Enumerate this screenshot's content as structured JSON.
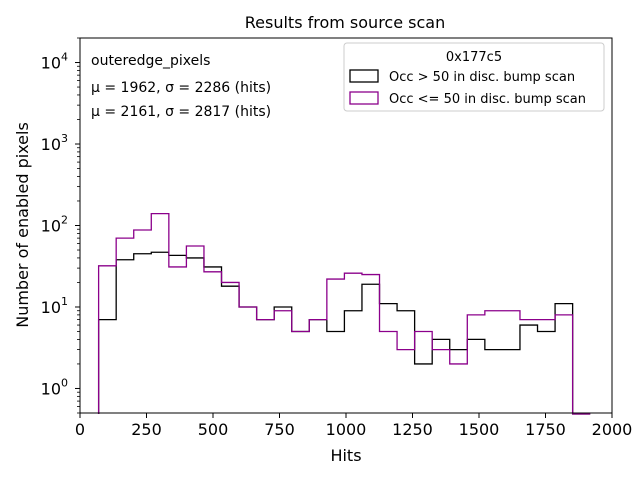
{
  "chart_data": {
    "type": "histogram",
    "title": "Results from source scan",
    "xlabel": "Hits",
    "ylabel": "Number of enabled pixels",
    "xlim": [
      0,
      2000
    ],
    "ylim": [
      0.5,
      20000
    ],
    "yscale": "log",
    "grid": false,
    "x_ticks": [
      0,
      250,
      500,
      750,
      1000,
      1250,
      1500,
      1750,
      2000
    ],
    "x_tick_labels": [
      "0",
      "250",
      "500",
      "750",
      "1000",
      "1250",
      "1500",
      "1750",
      "2000"
    ],
    "y_ticks": [
      1,
      10,
      100,
      1000,
      10000
    ],
    "y_tick_labels": [
      {
        "base": "10",
        "exp": "0"
      },
      {
        "base": "10",
        "exp": "1"
      },
      {
        "base": "10",
        "exp": "2"
      },
      {
        "base": "10",
        "exp": "3"
      },
      {
        "base": "10",
        "exp": "4"
      }
    ],
    "bin_edges": [
      70,
      136,
      202,
      268,
      334,
      400,
      466,
      532,
      598,
      664,
      730,
      796,
      862,
      928,
      994,
      1060,
      1126,
      1192,
      1258,
      1324,
      1390,
      1456,
      1522,
      1588,
      1654,
      1720,
      1786,
      1852,
      1918
    ],
    "series": [
      {
        "name": "Occ > 50 in disc. bump scan",
        "color": "#000000",
        "values": [
          7,
          38,
          45,
          47,
          43,
          40,
          31,
          18,
          10,
          7,
          10,
          5,
          7,
          5,
          9,
          19,
          11,
          9,
          2,
          4,
          3,
          4,
          3,
          3,
          6,
          5,
          11,
          0
        ]
      },
      {
        "name": "Occ <= 50 in disc. bump scan",
        "color": "#8b008b",
        "values": [
          32,
          70,
          88,
          140,
          31,
          56,
          27,
          20,
          10,
          7,
          9,
          5,
          7,
          22,
          26,
          25,
          5,
          3,
          5,
          3,
          2,
          8,
          9,
          9,
          7,
          7,
          8,
          0
        ]
      }
    ],
    "legend": {
      "title": "0x177c5",
      "placement": "top-right"
    },
    "annotations": {
      "name": "outeredge_pixels",
      "series1_stats": "μ = 1962, σ = 2286 (hits)",
      "series2_stats": "μ = 2161, σ = 2817 (hits)",
      "series2_color": "#8b008b"
    }
  }
}
